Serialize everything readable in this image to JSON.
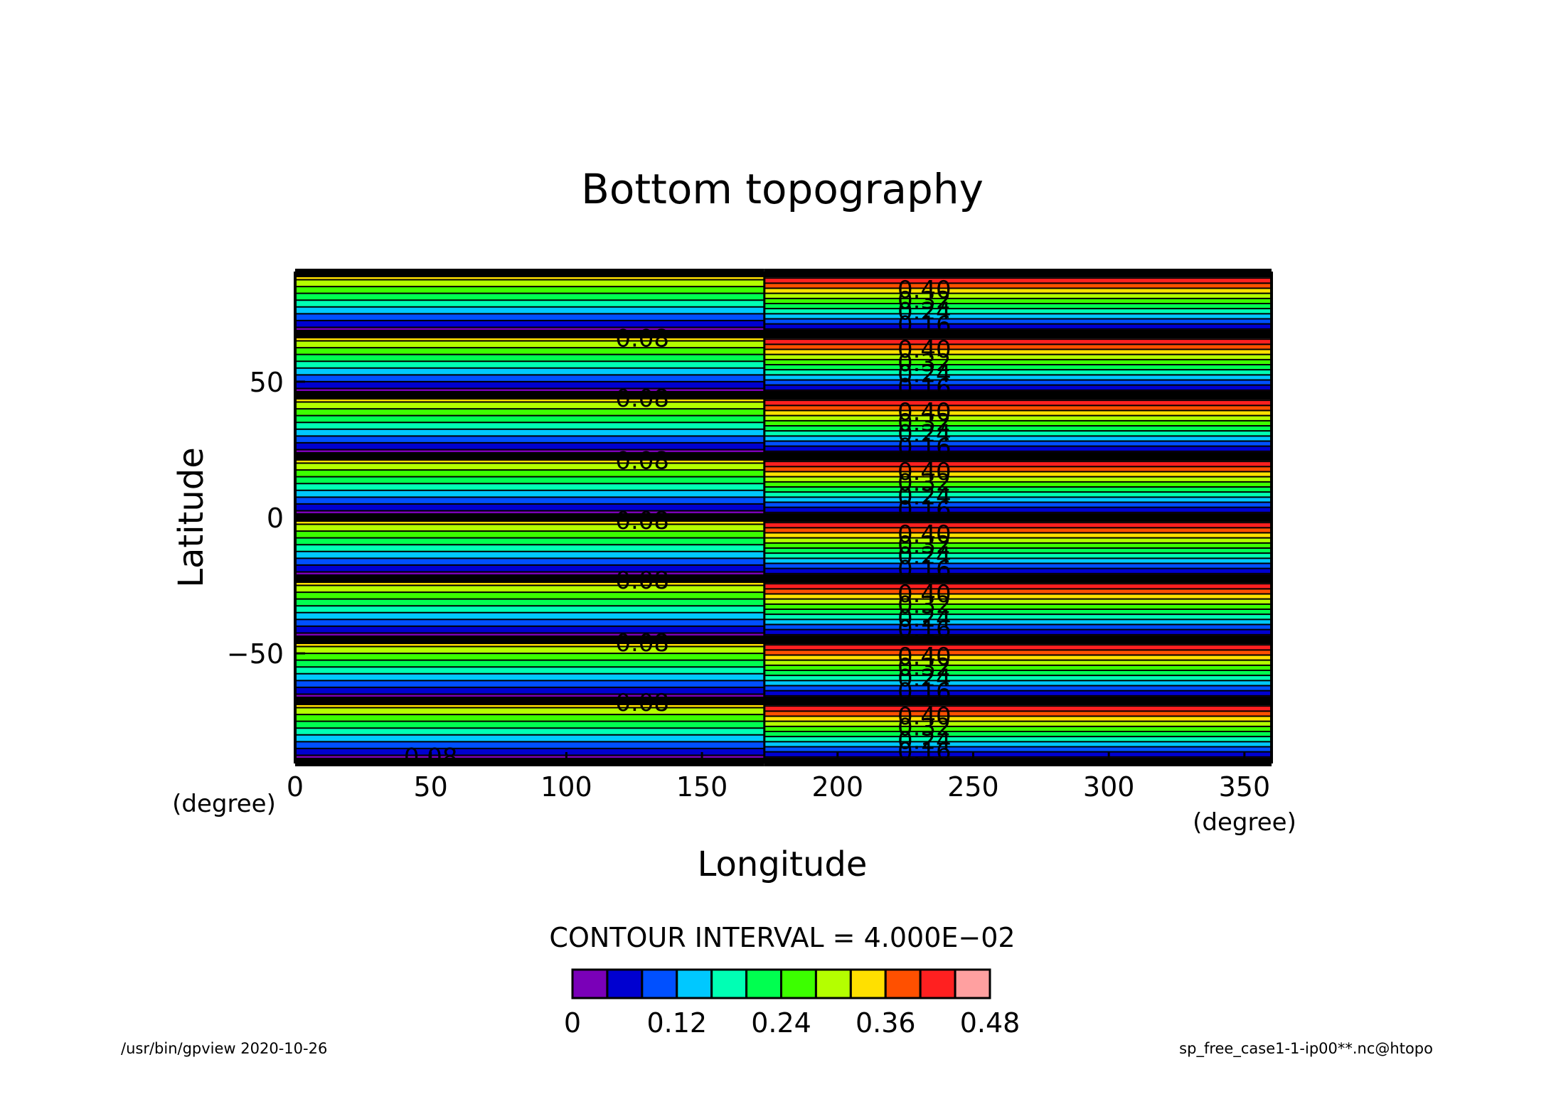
{
  "chart_data": {
    "type": "heatmap",
    "title": "Bottom topography",
    "xlabel": "Longitude",
    "ylabel": "Latitude",
    "x_unit": "(degree)",
    "y_unit": "(degree)",
    "xlim": [
      0,
      360
    ],
    "ylim": [
      -90,
      90
    ],
    "x_ticks": [
      "0",
      "50",
      "100",
      "150",
      "200",
      "250",
      "300",
      "350"
    ],
    "y_ticks": [
      "50",
      "0",
      "−50"
    ],
    "x_tick_values": [
      0,
      50,
      100,
      150,
      200,
      250,
      300,
      350
    ],
    "y_tick_values": [
      50,
      0,
      -50
    ],
    "contour_interval_text": "CONTOUR INTERVAL = 4.000E−02",
    "colorbar": {
      "colors": [
        "#7a00b8",
        "#0000d0",
        "#0050ff",
        "#00c8ff",
        "#00ffb4",
        "#00ff50",
        "#3cff00",
        "#b4ff00",
        "#ffe000",
        "#ff5000",
        "#ff2020",
        "#ffa0a0"
      ],
      "bounds": [
        0,
        0.04,
        0.08,
        0.12,
        0.16,
        0.2,
        0.24,
        0.28,
        0.32,
        0.36,
        0.4,
        0.44,
        0.48
      ],
      "tick_labels": [
        "0",
        "0.12",
        "0.24",
        "0.36",
        "0.48"
      ],
      "tick_values": [
        0,
        0.12,
        0.24,
        0.36,
        0.48
      ]
    },
    "pattern": {
      "description_free": true,
      "bands_latitude_period": 22.5,
      "west_max_value": 0.36,
      "east_max_value": 0.48,
      "transition_longitude": 173
    },
    "contour_labels": [
      {
        "text": "0.40",
        "lon": 232,
        "lat": 84
      },
      {
        "text": "0.32",
        "lon": 232,
        "lat": 80
      },
      {
        "text": "0.24",
        "lon": 232,
        "lat": 76
      },
      {
        "text": "0.16",
        "lon": 232,
        "lat": 71
      },
      {
        "text": "0.08",
        "lon": 128,
        "lat": 66
      },
      {
        "text": "0.40",
        "lon": 232,
        "lat": 62
      },
      {
        "text": "0.32",
        "lon": 232,
        "lat": 57
      },
      {
        "text": "0.24",
        "lon": 232,
        "lat": 53
      },
      {
        "text": "0.16",
        "lon": 232,
        "lat": 48
      },
      {
        "text": "0.08",
        "lon": 128,
        "lat": 44
      },
      {
        "text": "0.40",
        "lon": 232,
        "lat": 39
      },
      {
        "text": "0.32",
        "lon": 232,
        "lat": 35
      },
      {
        "text": "0.24",
        "lon": 232,
        "lat": 31
      },
      {
        "text": "0.16",
        "lon": 232,
        "lat": 26
      },
      {
        "text": "0.08",
        "lon": 128,
        "lat": 21
      },
      {
        "text": "0.40",
        "lon": 232,
        "lat": 17
      },
      {
        "text": "0.32",
        "lon": 232,
        "lat": 13
      },
      {
        "text": "0.24",
        "lon": 232,
        "lat": 8
      },
      {
        "text": "0.16",
        "lon": 232,
        "lat": 3
      },
      {
        "text": "0.08",
        "lon": 128,
        "lat": -1
      },
      {
        "text": "0.40",
        "lon": 232,
        "lat": -6
      },
      {
        "text": "0.32",
        "lon": 232,
        "lat": -10
      },
      {
        "text": "0.24",
        "lon": 232,
        "lat": -14
      },
      {
        "text": "0.16",
        "lon": 232,
        "lat": -19
      },
      {
        "text": "0.08",
        "lon": 128,
        "lat": -23
      },
      {
        "text": "0.40",
        "lon": 232,
        "lat": -28
      },
      {
        "text": "0.32",
        "lon": 232,
        "lat": -32
      },
      {
        "text": "0.24",
        "lon": 232,
        "lat": -37
      },
      {
        "text": "0.16",
        "lon": 232,
        "lat": -41
      },
      {
        "text": "0.08",
        "lon": 128,
        "lat": -46
      },
      {
        "text": "0.40",
        "lon": 232,
        "lat": -51
      },
      {
        "text": "0.32",
        "lon": 232,
        "lat": -55
      },
      {
        "text": "0.24",
        "lon": 232,
        "lat": -59
      },
      {
        "text": "0.16",
        "lon": 232,
        "lat": -64
      },
      {
        "text": "0.08",
        "lon": 128,
        "lat": -68
      },
      {
        "text": "0.40",
        "lon": 232,
        "lat": -73
      },
      {
        "text": "0.32",
        "lon": 232,
        "lat": -77
      },
      {
        "text": "0.24",
        "lon": 232,
        "lat": -82
      },
      {
        "text": "0.16",
        "lon": 232,
        "lat": -86
      },
      {
        "text": "0.08",
        "lon": 50,
        "lat": -88
      }
    ]
  },
  "footer": {
    "left": "/usr/bin/gpview  2020-10-26",
    "right": "sp_free_case1-1-ip00**.nc@htopo"
  }
}
